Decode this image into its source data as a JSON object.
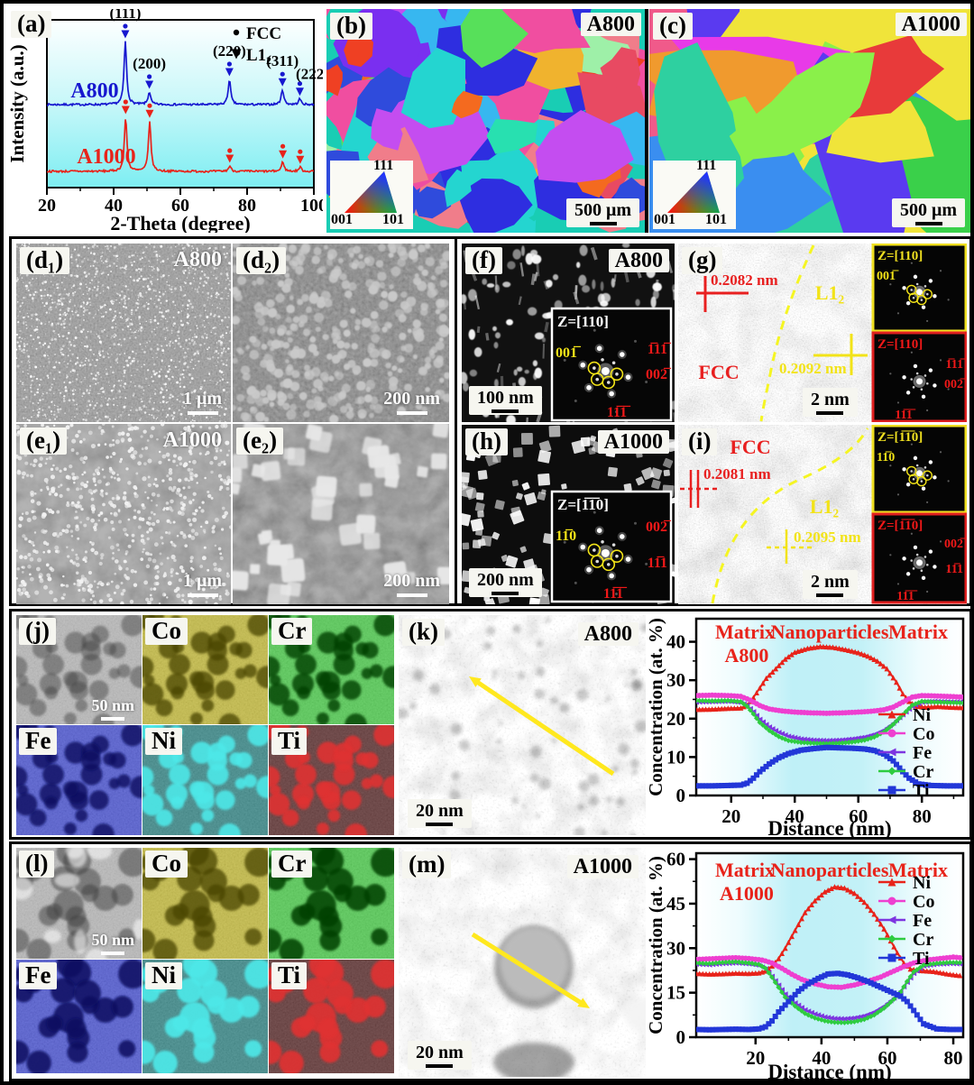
{
  "panels": {
    "a": {
      "label": "(a)"
    },
    "b": {
      "label": "(b)",
      "sample": "A800",
      "scalebar": "500 μm",
      "ipf_labels": [
        "111",
        "001",
        "101"
      ]
    },
    "c": {
      "label": "(c)",
      "sample": "A1000",
      "scalebar": "500 μm",
      "ipf_labels": [
        "111",
        "001",
        "101"
      ]
    },
    "d1": {
      "label": "(d₁)",
      "sample": "A800",
      "scalebar": "1 μm"
    },
    "d2": {
      "label": "(d₂)",
      "scalebar": "200 nm"
    },
    "e1": {
      "label": "(e₁)",
      "sample": "A1000",
      "scalebar": "1 μm"
    },
    "e2": {
      "label": "(e₂)",
      "scalebar": "200 nm"
    },
    "f": {
      "label": "(f)",
      "sample": "A800",
      "scalebar": "100 nm",
      "inset": {
        "zone": "Z=[110]",
        "spots_yellow": [
          "001̅"
        ],
        "spots_red": [
          "1̅11̅",
          "002̅",
          "11̅1̅"
        ]
      }
    },
    "g": {
      "label": "(g)",
      "scalebar": "2 nm",
      "phase_fcc": "FCC",
      "phase_l12": "L1₂",
      "d_fcc": "0.2082 nm",
      "d_l12": "0.2092 nm",
      "fft_top": {
        "zone": "Z=[110]",
        "spot": "001̅"
      },
      "fft_bottom": {
        "zone": "Z=[110]",
        "spots": [
          "1̅11̅",
          "002̅",
          "11̅1̅"
        ]
      }
    },
    "h": {
      "label": "(h)",
      "sample": "A1000",
      "scalebar": "200 nm",
      "inset": {
        "zone": "Z=[1̅1̅0]",
        "spots_yellow": [
          "11̅0"
        ],
        "spots_red": [
          "002̅",
          "11̅1",
          "11̅1̅"
        ]
      }
    },
    "i": {
      "label": "(i)",
      "scalebar": "2 nm",
      "phase_fcc": "FCC",
      "phase_l12": "L1₂",
      "d_fcc": "0.2081 nm",
      "d_l12": "0.2095 nm",
      "fft_top": {
        "zone": "Z=[1̅1̅0]",
        "spot": "11̅0"
      },
      "fft_bottom": {
        "zone": "Z=[1̅1̅0]",
        "spots": [
          "002̅",
          "11̅1",
          "11̅1̅"
        ]
      }
    },
    "j": {
      "label": "(j)",
      "scalebar": "50 nm",
      "elements": [
        "Co",
        "Cr",
        "Fe",
        "Ni",
        "Ti"
      ]
    },
    "k": {
      "label": "(k)",
      "sample": "A800",
      "scalebar": "20 nm"
    },
    "l": {
      "label": "(l)",
      "scalebar": "50 nm",
      "elements": [
        "Co",
        "Cr",
        "Fe",
        "Ni",
        "Ti"
      ]
    },
    "m": {
      "label": "(m)",
      "sample": "A1000",
      "scalebar": "20 nm"
    }
  },
  "chart_data": [
    {
      "type": "line",
      "title": "",
      "xlabel": "2-Theta (degree)",
      "ylabel": "Intensity (a.u.)",
      "xlim": [
        20,
        100
      ],
      "x_ticks": [
        20,
        40,
        60,
        80,
        100
      ],
      "x_minor_ticks": [
        30,
        50,
        70,
        90
      ],
      "legend": [
        {
          "marker": "circle",
          "label": "FCC"
        },
        {
          "marker": "triangle-down",
          "label": "L1₂"
        }
      ],
      "series": [
        {
          "name": "A800",
          "color": "#1717cf",
          "peaks": [
            {
              "hkl": "(111)",
              "two_theta": 43.5,
              "rel_intensity": 1.0
            },
            {
              "hkl": "(200)",
              "two_theta": 50.7,
              "rel_intensity": 0.2
            },
            {
              "hkl": "(220)",
              "two_theta": 74.7,
              "rel_intensity": 0.4
            },
            {
              "hkl": "(311)",
              "two_theta": 90.6,
              "rel_intensity": 0.24
            },
            {
              "hkl": "(222)",
              "two_theta": 95.8,
              "rel_intensity": 0.09
            }
          ]
        },
        {
          "name": "A1000",
          "color": "#e8231a",
          "peaks": [
            {
              "hkl": "(111)",
              "two_theta": 43.6,
              "rel_intensity": 1.0
            },
            {
              "hkl": "(200)",
              "two_theta": 50.8,
              "rel_intensity": 0.93
            },
            {
              "hkl": "(220)",
              "two_theta": 74.8,
              "rel_intensity": 0.1
            },
            {
              "hkl": "(311)",
              "two_theta": 90.7,
              "rel_intensity": 0.18
            },
            {
              "hkl": "(222)",
              "two_theta": 95.9,
              "rel_intensity": 0.08
            }
          ]
        }
      ]
    },
    {
      "type": "line",
      "title_words": [
        "Matrix",
        "Nanoparticles",
        "Matrix"
      ],
      "sample": "A800",
      "xlabel": "Distance (nm)",
      "ylabel": "Concentration (at. %)",
      "xlim": [
        9,
        93
      ],
      "ylim": [
        0,
        46
      ],
      "x_ticks": [
        20,
        40,
        60,
        80
      ],
      "y_ticks": [
        0,
        10,
        20,
        30,
        40
      ],
      "legend_position": "right-middle",
      "series": [
        {
          "name": "Ni",
          "color": "#e8231a",
          "marker": "triangle-up",
          "x": [
            9,
            14,
            19,
            23,
            25,
            27,
            29,
            31,
            34,
            37,
            40,
            44,
            48,
            52,
            56,
            60,
            63,
            66,
            69,
            72,
            74,
            76,
            78,
            81,
            85,
            89,
            93
          ],
          "y": [
            22.4,
            22.5,
            22.7,
            22.8,
            23.5,
            25.5,
            28,
            30.5,
            33,
            35.5,
            37.3,
            38.3,
            38.8,
            38.6,
            38,
            37.2,
            36.3,
            35,
            33,
            29.5,
            26.5,
            24.5,
            23.3,
            23,
            23.2,
            23,
            22.9
          ]
        },
        {
          "name": "Co",
          "color": "#ee3fd0",
          "marker": "circle",
          "x": [
            9,
            14,
            19,
            23,
            26,
            29,
            32,
            36,
            40,
            45,
            50,
            55,
            60,
            64,
            68,
            71,
            74,
            77,
            80,
            84,
            88,
            93
          ],
          "y": [
            26,
            26.1,
            26,
            25.8,
            24.8,
            23.4,
            22.5,
            22,
            21.7,
            21.5,
            21.4,
            21.5,
            21.7,
            21.9,
            22.3,
            23,
            24.3,
            25.6,
            26,
            25.9,
            25.8,
            25.6
          ]
        },
        {
          "name": "Fe",
          "color": "#7d35e0",
          "marker": "triangle-left",
          "x": [
            9,
            14,
            19,
            23,
            25,
            27,
            29,
            32,
            35,
            38,
            42,
            46,
            50,
            54,
            58,
            62,
            65,
            68,
            71,
            74,
            77,
            80,
            84,
            88,
            93
          ],
          "y": [
            24.3,
            24.4,
            24.5,
            24.2,
            23.4,
            21.8,
            19.8,
            17.8,
            16.4,
            15.4,
            14.7,
            14.4,
            14.3,
            14.4,
            14.7,
            15.2,
            15.9,
            17,
            18.8,
            21,
            23.2,
            24.3,
            24.5,
            24.4,
            24.3
          ]
        },
        {
          "name": "Cr",
          "color": "#2ecc40",
          "marker": "diamond",
          "x": [
            9,
            14,
            19,
            23,
            25,
            27,
            29,
            32,
            35,
            38,
            42,
            46,
            50,
            54,
            58,
            62,
            65,
            68,
            71,
            74,
            77,
            80,
            84,
            88,
            93
          ],
          "y": [
            24.7,
            24.6,
            24.7,
            24.4,
            23.2,
            21.2,
            19,
            16.9,
            15.3,
            14.3,
            13.8,
            13.6,
            13.5,
            13.6,
            13.9,
            14.4,
            15.2,
            16.5,
            18.5,
            21,
            23.5,
            24.5,
            24.3,
            24.2,
            24.1
          ]
        },
        {
          "name": "Ti",
          "color": "#2237d8",
          "marker": "square",
          "x": [
            9,
            14,
            19,
            23,
            25,
            27,
            29,
            32,
            35,
            38,
            42,
            46,
            50,
            54,
            58,
            62,
            65,
            68,
            71,
            74,
            76,
            79,
            83,
            88,
            93
          ],
          "y": [
            2.5,
            2.5,
            2.6,
            2.7,
            3.2,
            4.5,
            6.2,
            8.2,
            9.8,
            10.9,
            11.8,
            12.2,
            12.5,
            12.4,
            12.3,
            12.1,
            11.7,
            10.8,
            9,
            6.2,
            4.5,
            3,
            2.6,
            2.5,
            2.5
          ]
        }
      ]
    },
    {
      "type": "line",
      "title_words": [
        "Matrix",
        "Nanoparticles",
        "Matrix"
      ],
      "sample": "A1000",
      "xlabel": "Distance (nm)",
      "ylabel": "Concentration (at. %)",
      "xlim": [
        2,
        83
      ],
      "ylim": [
        0,
        62
      ],
      "x_ticks": [
        20,
        40,
        60,
        80
      ],
      "y_ticks": [
        0,
        15,
        30,
        45,
        60
      ],
      "legend_position": "right-top",
      "series": [
        {
          "name": "Ni",
          "color": "#e8231a",
          "marker": "triangle-up",
          "x": [
            2,
            6,
            10,
            14,
            18,
            21,
            23,
            25,
            27,
            29,
            31,
            33,
            35,
            38,
            41,
            44,
            47,
            50,
            53,
            56,
            59,
            61,
            63,
            65,
            67,
            70,
            74,
            78,
            82
          ],
          "y": [
            21.5,
            21.3,
            21.4,
            21.6,
            21.5,
            21.7,
            22.3,
            24,
            26.5,
            30,
            34,
            38,
            42,
            46,
            49,
            50.7,
            50.3,
            48.5,
            45.5,
            41.5,
            36.5,
            32.5,
            28.5,
            25,
            23,
            22.5,
            22.2,
            21.4,
            20.8
          ]
        },
        {
          "name": "Co",
          "color": "#ee3fd0",
          "marker": "circle",
          "x": [
            2,
            6,
            10,
            14,
            18,
            22,
            25,
            28,
            31,
            34,
            38,
            42,
            46,
            50,
            54,
            58,
            62,
            65,
            68,
            72,
            76,
            80,
            82
          ],
          "y": [
            26.2,
            26.4,
            26.6,
            26.8,
            26.5,
            26,
            25,
            23.2,
            21.2,
            19.5,
            18,
            17,
            16.8,
            17.6,
            18.8,
            20.3,
            22.3,
            23.8,
            25,
            26,
            26.5,
            27,
            26.8
          ]
        },
        {
          "name": "Fe",
          "color": "#7d35e0",
          "marker": "triangle-left",
          "x": [
            2,
            6,
            10,
            14,
            18,
            21,
            23,
            25,
            27,
            29,
            32,
            35,
            38,
            41,
            44,
            47,
            50,
            53,
            56,
            59,
            62,
            64,
            66,
            68,
            71,
            75,
            79,
            82
          ],
          "y": [
            24.6,
            24.4,
            24.8,
            25,
            24.7,
            24.2,
            23,
            20.5,
            17.5,
            14.5,
            11.5,
            9.2,
            7.8,
            6.8,
            6.3,
            6.2,
            6.5,
            7.2,
            8.5,
            10.5,
            13.2,
            15.5,
            18.5,
            21.5,
            24,
            24.6,
            24.8,
            24.7
          ]
        },
        {
          "name": "Cr",
          "color": "#2ecc40",
          "marker": "diamond",
          "x": [
            2,
            6,
            10,
            14,
            18,
            21,
            23,
            25,
            27,
            29,
            32,
            35,
            38,
            41,
            44,
            47,
            50,
            53,
            56,
            59,
            62,
            64,
            66,
            68,
            71,
            75,
            79,
            82
          ],
          "y": [
            25,
            24.8,
            25.2,
            25.4,
            25,
            24.5,
            23.2,
            20.2,
            16.8,
            13.5,
            10.5,
            8,
            6.5,
            5.5,
            5,
            4.9,
            5.2,
            6,
            7.5,
            9.8,
            12.8,
            15.2,
            18.8,
            22,
            24.3,
            24.9,
            25.2,
            25.1
          ]
        },
        {
          "name": "Ti",
          "color": "#2237d8",
          "marker": "square",
          "x": [
            2,
            6,
            10,
            14,
            18,
            21,
            23,
            25,
            27,
            30,
            33,
            36,
            39,
            42,
            45,
            48,
            51,
            54,
            57,
            60,
            62,
            64,
            66,
            68,
            71,
            75,
            79,
            82
          ],
          "y": [
            2.6,
            2.5,
            2.6,
            2.7,
            2.6,
            2.8,
            3.5,
            5.5,
            8.5,
            12,
            15.5,
            18,
            19.8,
            21.3,
            21.5,
            21,
            20,
            18.8,
            17.3,
            15.8,
            14.8,
            13.8,
            12,
            9,
            4.5,
            2.8,
            2.6,
            2.6
          ]
        }
      ]
    }
  ]
}
